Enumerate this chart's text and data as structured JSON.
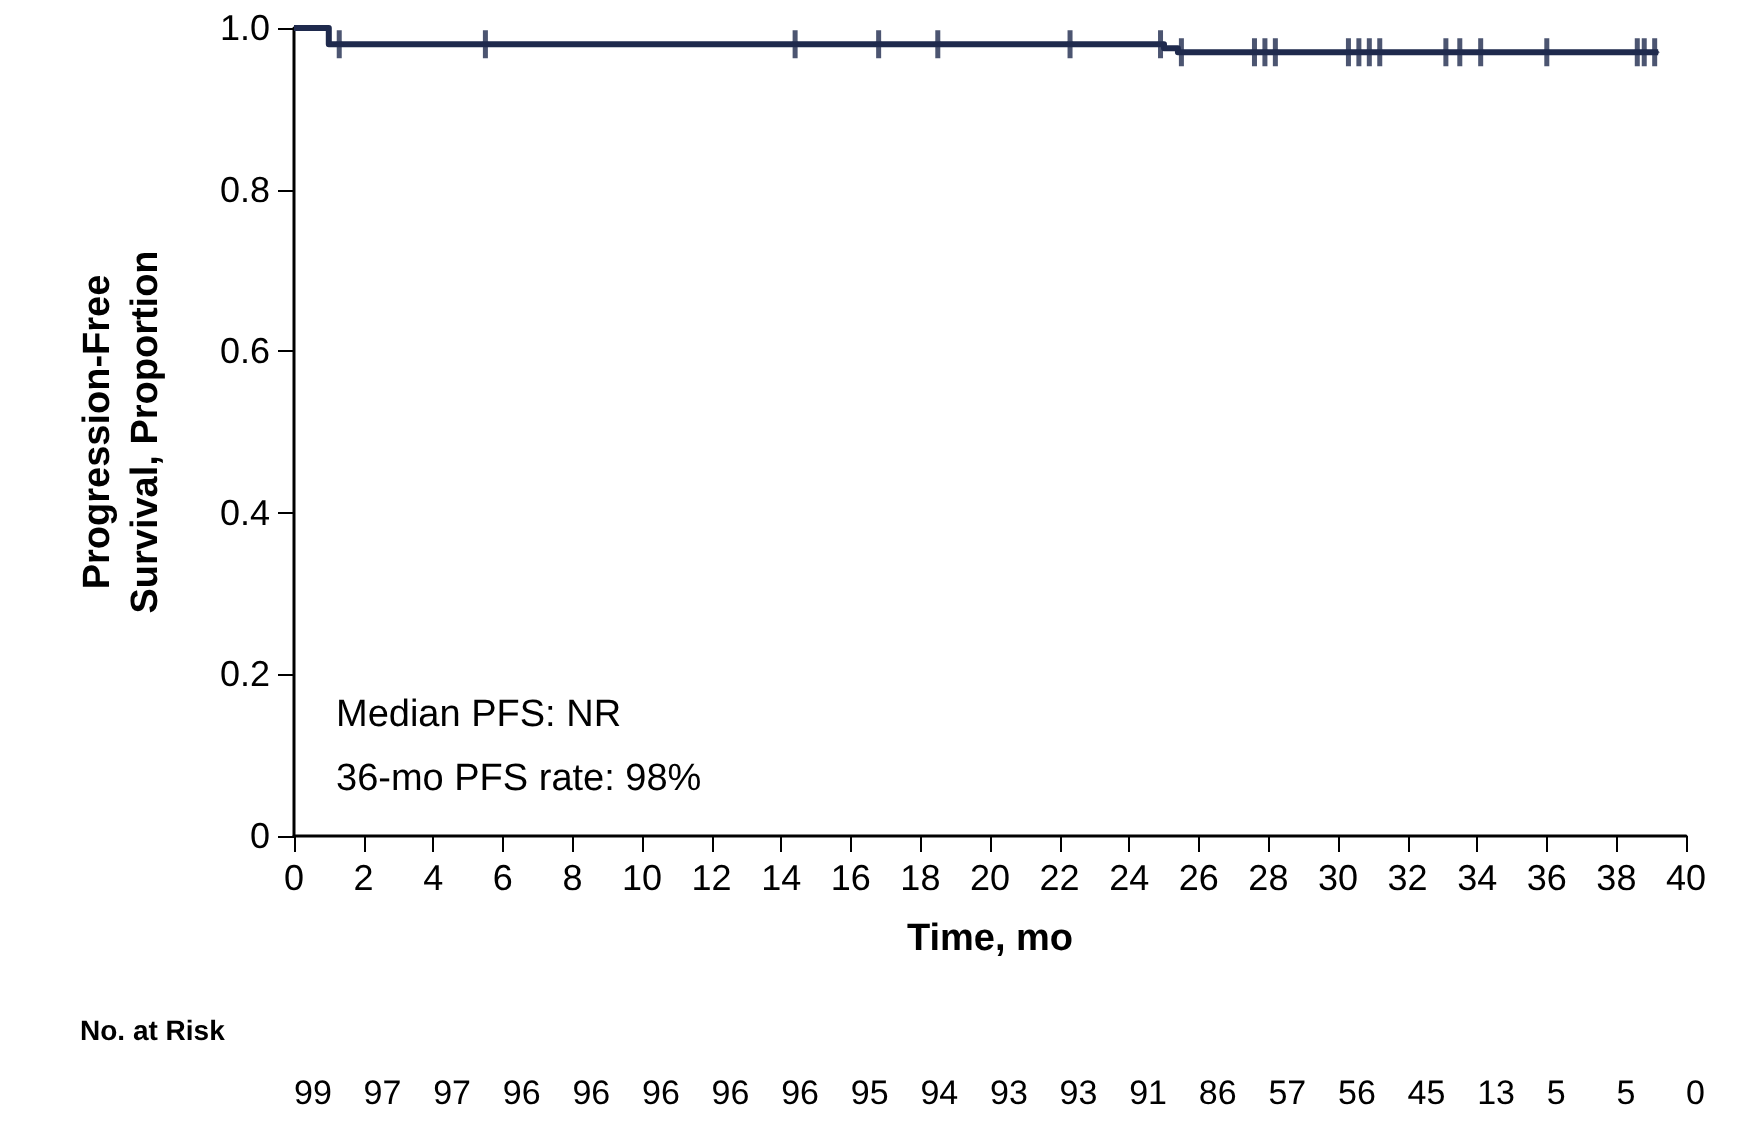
{
  "chart_data": {
    "type": "step",
    "xlabel": "Time, mo",
    "ylabel": "Progression-Free\nSurvival, Proportion",
    "xlim": [
      0,
      40
    ],
    "xticks": [
      0,
      2,
      4,
      6,
      8,
      10,
      12,
      14,
      16,
      18,
      20,
      22,
      24,
      26,
      28,
      30,
      32,
      34,
      36,
      38,
      40
    ],
    "ylim": [
      0,
      1
    ],
    "yticks": [
      {
        "value": 0,
        "label": "0"
      },
      {
        "value": 0.2,
        "label": "0.2"
      },
      {
        "value": 0.4,
        "label": "0.4"
      },
      {
        "value": 0.6,
        "label": "0.6"
      },
      {
        "value": 0.8,
        "label": "0.8"
      },
      {
        "value": 1,
        "label": "1.0"
      }
    ],
    "grid": false,
    "series": [
      {
        "color": "#1f2a4d",
        "x": [
          0,
          1.0,
          25.0,
          25.4,
          39.2
        ],
        "values": [
          1,
          0.98,
          0.975,
          0.97,
          0.97
        ]
      },
      {
        "type": "scatter",
        "color": "#1f2a4d",
        "x": [
          1.3,
          5.5,
          14.4,
          16.8,
          18.5,
          22.3,
          24.9,
          25.5,
          27.6,
          27.9,
          28.2,
          30.3,
          30.6,
          30.9,
          31.2,
          33.1,
          33.5,
          34.1,
          36.0,
          38.6,
          38.8,
          39.1
        ],
        "values": [
          0.98,
          0.98,
          0.98,
          0.98,
          0.98,
          0.98,
          0.98,
          0.97,
          0.97,
          0.97,
          0.97,
          0.97,
          0.97,
          0.97,
          0.97,
          0.97,
          0.97,
          0.97,
          0.97,
          0.97,
          0.97,
          0.97
        ]
      }
    ],
    "annotations": [
      "Median PFS: NR",
      "36-mo PFS rate: 98%",
      "No. at Risk",
      "99 97 97 96 96 96 96 96 95 94 93 93 91 86 57 56 45 13 5 5 0"
    ]
  }
}
